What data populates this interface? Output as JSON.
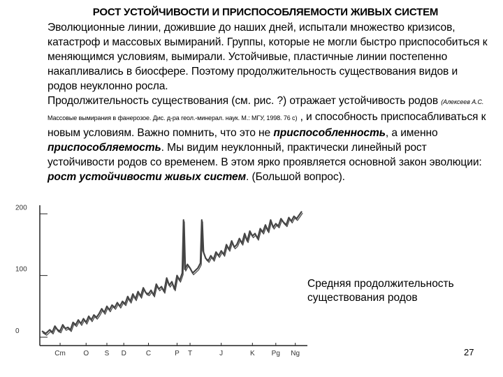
{
  "title": "РОСТ УСТОЙЧИВОСТИ И ПРИСПОСОБЛЯЕМОСТИ ЖИВЫХ СИСТЕМ",
  "paragraph1": "Эволюционные линии, дожившие до наших дней, испытали множество кризисов, катастроф и массовых вымираний. Группы, которые не могли быстро приспособиться к меняющимся условиям, вымирали. Устойчивые, пластичные линии постепенно накапливались в биосфере. Поэтому продолжительность существования видов и родов неуклонно росла.",
  "p2": {
    "a": "Продолжительность существования (см. рис. ?) отражает устойчивость родов ",
    "cite_author": "(Алексеев А.С.",
    "cite_rest": " Массовые вымирания в фанерозое. Дис. д-ра геол.-минерал. наук. М.: МГУ, 1998. 76 с)",
    "b": " , и способность приспосабливаться к новым условиям. Важно помнить, что это не ",
    "em1": "приспособленность",
    "c": ", а именно ",
    "em2": "приспособляемость",
    "d": ". Мы видим неуклонный, практически линейный рост устойчивости родов со временем. В этом ярко проявляется основной закон эволюции: ",
    "em3": "рост устойчивости живых систем",
    "e": ". (Большой вопрос)."
  },
  "legend": "Средняя продолжительность существования родов",
  "page_number": "27",
  "chart_data": {
    "type": "line",
    "title": "",
    "xlabel": "",
    "ylabel": "",
    "yticks": [
      0,
      100,
      200
    ],
    "ylim": [
      0,
      215
    ],
    "xlim": [
      0,
      100
    ],
    "periods": [
      {
        "label": "Cm",
        "x": 7
      },
      {
        "label": "O",
        "x": 17
      },
      {
        "label": "S",
        "x": 25
      },
      {
        "label": "D",
        "x": 31.5
      },
      {
        "label": "C",
        "x": 41
      },
      {
        "label": "P",
        "x": 52
      },
      {
        "label": "T",
        "x": 57
      },
      {
        "label": "J",
        "x": 69
      },
      {
        "label": "K",
        "x": 81
      },
      {
        "label": "Pg",
        "x": 90
      },
      {
        "label": "Ng",
        "x": 97.5
      }
    ],
    "series": [
      {
        "color": "#444444",
        "x": [
          0,
          1.5,
          3,
          4,
          5,
          6,
          7,
          8,
          9,
          10,
          11,
          12,
          13,
          14,
          15,
          16,
          17,
          18,
          19,
          20,
          21,
          22,
          23,
          24,
          25,
          26,
          27,
          28,
          29,
          30,
          31,
          32,
          33,
          34,
          35,
          36,
          37,
          38,
          39,
          40,
          41,
          42,
          43,
          44,
          45,
          46,
          47,
          48,
          49,
          50,
          51,
          52,
          53,
          54,
          54.5,
          55,
          56,
          57,
          58,
          59,
          60,
          61,
          61.5,
          62,
          63,
          64,
          65,
          66,
          67,
          68,
          69,
          70,
          71,
          72,
          73,
          74,
          75,
          76,
          77,
          78,
          79,
          80,
          81,
          82,
          83,
          84,
          85,
          86,
          87,
          88,
          89,
          90,
          91,
          92,
          93,
          94,
          95,
          96,
          97,
          98,
          99,
          100
        ],
        "values": [
          10,
          6,
          12,
          8,
          18,
          12,
          10,
          20,
          14,
          16,
          12,
          24,
          20,
          28,
          22,
          30,
          24,
          34,
          28,
          36,
          32,
          38,
          46,
          40,
          50,
          44,
          52,
          48,
          56,
          50,
          58,
          54,
          66,
          58,
          70,
          62,
          74,
          66,
          80,
          72,
          70,
          76,
          68,
          86,
          78,
          82,
          74,
          96,
          84,
          90,
          78,
          100,
          92,
          104,
          190,
          110,
          118,
          112,
          104,
          108,
          112,
          120,
          190,
          140,
          128,
          124,
          132,
          126,
          138,
          132,
          140,
          134,
          150,
          142,
          156,
          146,
          150,
          160,
          152,
          168,
          156,
          172,
          164,
          168,
          160,
          176,
          170,
          182,
          172,
          190,
          178,
          184,
          180,
          192,
          186,
          182,
          194,
          188,
          196,
          192,
          198,
          204
        ]
      }
    ]
  }
}
